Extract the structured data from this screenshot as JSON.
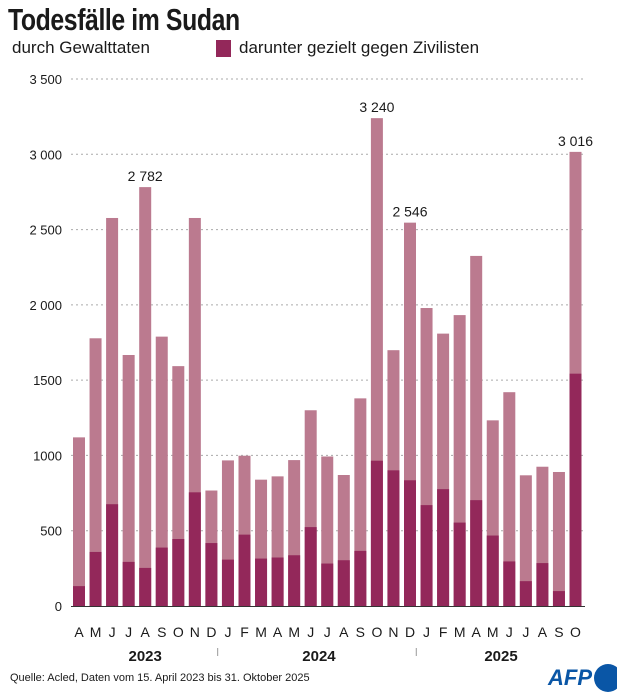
{
  "title": "Todesfälle im Sudan",
  "legend": {
    "total_label": "durch Gewalttaten",
    "civilian_label": "darunter gezielt gegen Zivilisten"
  },
  "source": "Quelle: Acled, Daten vom 15. April 2023 bis 31. Oktober 2025",
  "logo_text": "AFP",
  "colors": {
    "total": "#bb7a8f",
    "civilians": "#93285a",
    "grid": "#aaaaaa",
    "logo": "#0a56a6"
  },
  "chart_data": {
    "type": "bar",
    "stacked": "overlay",
    "title": "Todesfälle im Sudan",
    "xlabel": "",
    "ylabel": "",
    "ylim": [
      0,
      3500
    ],
    "yticks": [
      0,
      500,
      1000,
      1500,
      2000,
      2500,
      3000,
      3500
    ],
    "ytick_labels": [
      "0",
      "500",
      "1000",
      "1500",
      "2 000",
      "2 500",
      "3 000",
      "3 500"
    ],
    "grid": true,
    "legend_position": "top",
    "categories": [
      "A",
      "M",
      "J",
      "J",
      "A",
      "S",
      "O",
      "N",
      "D",
      "J",
      "F",
      "M",
      "A",
      "M",
      "J",
      "J",
      "A",
      "S",
      "O",
      "N",
      "D",
      "J",
      "F",
      "M",
      "A",
      "M",
      "J",
      "J",
      "A",
      "S",
      "O"
    ],
    "years": [
      {
        "label": "2023",
        "start": 0,
        "end": 8
      },
      {
        "label": "2024",
        "start": 9,
        "end": 20
      },
      {
        "label": "2025",
        "start": 21,
        "end": 30
      }
    ],
    "series": [
      {
        "name": "durch Gewalttaten",
        "values": [
          1120,
          1778,
          2577,
          1667,
          2782,
          1789,
          1593,
          2577,
          767,
          967,
          998,
          839,
          861,
          969,
          1300,
          993,
          870,
          1379,
          3240,
          1699,
          2546,
          1979,
          1809,
          1932,
          2325,
          1233,
          1420,
          868,
          925,
          890,
          3016
        ]
      },
      {
        "name": "darunter gezielt gegen Zivilisten",
        "values": [
          132,
          359,
          676,
          293,
          253,
          388,
          445,
          755,
          418,
          308,
          474,
          315,
          322,
          337,
          524,
          282,
          304,
          366,
          965,
          901,
          835,
          670,
          776,
          554,
          703,
          468,
          296,
          165,
          285,
          99,
          1543
        ]
      }
    ],
    "annotations": [
      {
        "index": 4,
        "label": "2 782"
      },
      {
        "index": 18,
        "label": "3 240"
      },
      {
        "index": 20,
        "label": "2 546"
      },
      {
        "index": 30,
        "label": "3 016"
      }
    ]
  }
}
